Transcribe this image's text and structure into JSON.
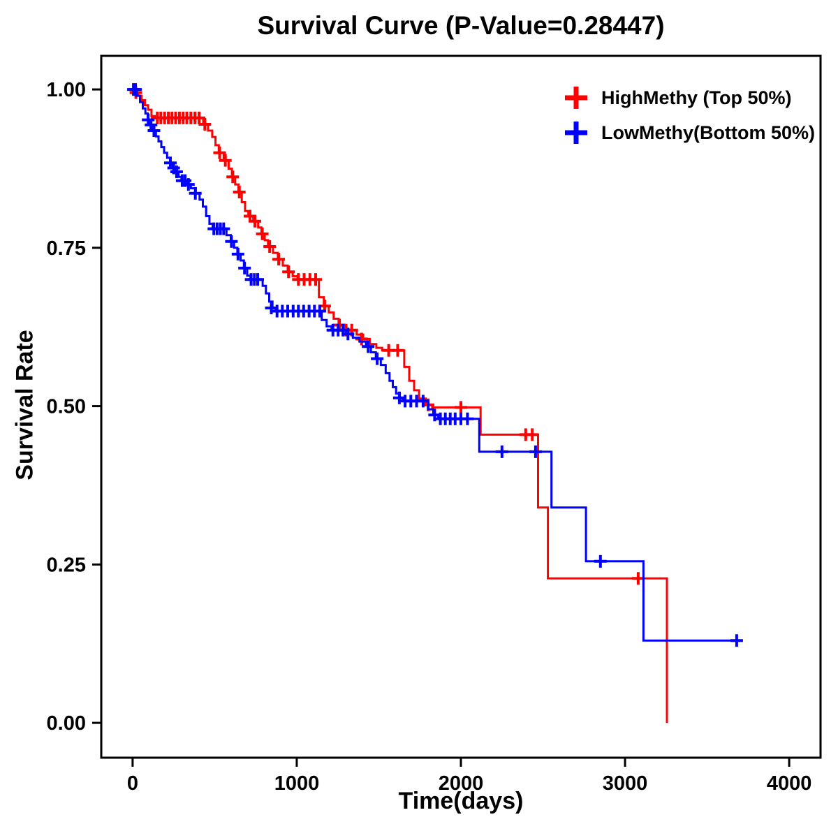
{
  "chart_data": {
    "type": "line",
    "subtype": "kaplan-meier-step",
    "title": "Survival Curve (P-Value=0.28447)",
    "xlabel": "Time(days)",
    "ylabel": "Survival Rate",
    "xlim": [
      -191,
      4191
    ],
    "ylim": [
      -0.055,
      1.053
    ],
    "xticks": [
      0,
      1000,
      2000,
      3000,
      4000
    ],
    "yticks": [
      0,
      0.25,
      0.5,
      0.75,
      1
    ],
    "grid": false,
    "legend_position": "top-right",
    "axis_color": "#000000",
    "series": [
      {
        "name": "HighMethy (Top 50%)",
        "color": "#ff0000",
        "steps": [
          [
            0,
            1.0
          ],
          [
            15,
            0.995
          ],
          [
            35,
            0.99
          ],
          [
            55,
            0.983
          ],
          [
            75,
            0.975
          ],
          [
            95,
            0.968
          ],
          [
            115,
            0.958
          ],
          [
            135,
            0.955
          ],
          [
            430,
            0.945
          ],
          [
            460,
            0.935
          ],
          [
            485,
            0.925
          ],
          [
            505,
            0.912
          ],
          [
            525,
            0.9
          ],
          [
            555,
            0.888
          ],
          [
            585,
            0.875
          ],
          [
            605,
            0.862
          ],
          [
            625,
            0.85
          ],
          [
            645,
            0.838
          ],
          [
            665,
            0.822
          ],
          [
            685,
            0.808
          ],
          [
            705,
            0.8
          ],
          [
            735,
            0.792
          ],
          [
            765,
            0.782
          ],
          [
            785,
            0.772
          ],
          [
            805,
            0.762
          ],
          [
            825,
            0.752
          ],
          [
            855,
            0.742
          ],
          [
            885,
            0.732
          ],
          [
            915,
            0.722
          ],
          [
            945,
            0.712
          ],
          [
            975,
            0.705
          ],
          [
            1005,
            0.7
          ],
          [
            1135,
            0.672
          ],
          [
            1165,
            0.658
          ],
          [
            1195,
            0.648
          ],
          [
            1225,
            0.638
          ],
          [
            1255,
            0.628
          ],
          [
            1285,
            0.62
          ],
          [
            1365,
            0.613
          ],
          [
            1405,
            0.606
          ],
          [
            1445,
            0.598
          ],
          [
            1485,
            0.592
          ],
          [
            1520,
            0.588
          ],
          [
            1655,
            0.562
          ],
          [
            1685,
            0.54
          ],
          [
            1715,
            0.525
          ],
          [
            1745,
            0.512
          ],
          [
            1785,
            0.502
          ],
          [
            1825,
            0.498
          ],
          [
            2120,
            0.455
          ],
          [
            2470,
            0.34
          ],
          [
            2530,
            0.228
          ],
          [
            3255,
            0.0
          ]
        ],
        "censors": [
          [
            20,
            0.995
          ],
          [
            150,
            0.955
          ],
          [
            172,
            0.955
          ],
          [
            195,
            0.955
          ],
          [
            218,
            0.955
          ],
          [
            240,
            0.955
          ],
          [
            262,
            0.955
          ],
          [
            285,
            0.955
          ],
          [
            308,
            0.955
          ],
          [
            330,
            0.955
          ],
          [
            355,
            0.955
          ],
          [
            380,
            0.955
          ],
          [
            405,
            0.955
          ],
          [
            440,
            0.945
          ],
          [
            530,
            0.9
          ],
          [
            565,
            0.888
          ],
          [
            610,
            0.862
          ],
          [
            650,
            0.838
          ],
          [
            715,
            0.8
          ],
          [
            745,
            0.792
          ],
          [
            790,
            0.772
          ],
          [
            835,
            0.752
          ],
          [
            890,
            0.732
          ],
          [
            950,
            0.712
          ],
          [
            1010,
            0.7
          ],
          [
            1045,
            0.7
          ],
          [
            1080,
            0.7
          ],
          [
            1115,
            0.7
          ],
          [
            1170,
            0.658
          ],
          [
            1260,
            0.628
          ],
          [
            1300,
            0.62
          ],
          [
            1335,
            0.62
          ],
          [
            1395,
            0.606
          ],
          [
            1560,
            0.588
          ],
          [
            1615,
            0.588
          ],
          [
            1800,
            0.502
          ],
          [
            2000,
            0.498
          ],
          [
            2395,
            0.455
          ],
          [
            2435,
            0.455
          ],
          [
            3080,
            0.228
          ]
        ]
      },
      {
        "name": "LowMethy(Bottom 50%)",
        "color": "#0000ff",
        "steps": [
          [
            0,
            1.0
          ],
          [
            25,
            0.99
          ],
          [
            45,
            0.98
          ],
          [
            62,
            0.97
          ],
          [
            78,
            0.962
          ],
          [
            92,
            0.952
          ],
          [
            108,
            0.944
          ],
          [
            125,
            0.935
          ],
          [
            142,
            0.926
          ],
          [
            158,
            0.918
          ],
          [
            175,
            0.909
          ],
          [
            192,
            0.9
          ],
          [
            210,
            0.892
          ],
          [
            228,
            0.884
          ],
          [
            245,
            0.876
          ],
          [
            262,
            0.87
          ],
          [
            280,
            0.862
          ],
          [
            298,
            0.856
          ],
          [
            325,
            0.85
          ],
          [
            355,
            0.844
          ],
          [
            385,
            0.836
          ],
          [
            408,
            0.826
          ],
          [
            428,
            0.815
          ],
          [
            448,
            0.8
          ],
          [
            468,
            0.788
          ],
          [
            488,
            0.78
          ],
          [
            572,
            0.77
          ],
          [
            598,
            0.76
          ],
          [
            618,
            0.75
          ],
          [
            638,
            0.74
          ],
          [
            658,
            0.73
          ],
          [
            678,
            0.718
          ],
          [
            698,
            0.706
          ],
          [
            718,
            0.7
          ],
          [
            792,
            0.69
          ],
          [
            812,
            0.678
          ],
          [
            832,
            0.665
          ],
          [
            852,
            0.655
          ],
          [
            872,
            0.65
          ],
          [
            1152,
            0.636
          ],
          [
            1182,
            0.626
          ],
          [
            1212,
            0.62
          ],
          [
            1302,
            0.614
          ],
          [
            1342,
            0.608
          ],
          [
            1382,
            0.602
          ],
          [
            1422,
            0.594
          ],
          [
            1452,
            0.585
          ],
          [
            1482,
            0.575
          ],
          [
            1512,
            0.565
          ],
          [
            1542,
            0.552
          ],
          [
            1565,
            0.54
          ],
          [
            1585,
            0.53
          ],
          [
            1605,
            0.52
          ],
          [
            1628,
            0.513
          ],
          [
            1648,
            0.508
          ],
          [
            1802,
            0.495
          ],
          [
            1832,
            0.486
          ],
          [
            1862,
            0.48
          ],
          [
            2112,
            0.428
          ],
          [
            2552,
            0.34
          ],
          [
            2762,
            0.255
          ],
          [
            3112,
            0.13
          ],
          [
            3700,
            0.13
          ]
        ],
        "censors": [
          [
            5,
            1.0
          ],
          [
            18,
            1.0
          ],
          [
            95,
            0.952
          ],
          [
            112,
            0.944
          ],
          [
            130,
            0.935
          ],
          [
            230,
            0.884
          ],
          [
            250,
            0.876
          ],
          [
            268,
            0.87
          ],
          [
            302,
            0.856
          ],
          [
            320,
            0.856
          ],
          [
            340,
            0.85
          ],
          [
            382,
            0.836
          ],
          [
            495,
            0.78
          ],
          [
            515,
            0.78
          ],
          [
            535,
            0.78
          ],
          [
            555,
            0.78
          ],
          [
            602,
            0.76
          ],
          [
            642,
            0.74
          ],
          [
            682,
            0.718
          ],
          [
            722,
            0.7
          ],
          [
            742,
            0.7
          ],
          [
            762,
            0.7
          ],
          [
            845,
            0.655
          ],
          [
            880,
            0.65
          ],
          [
            912,
            0.65
          ],
          [
            945,
            0.65
          ],
          [
            978,
            0.65
          ],
          [
            1010,
            0.65
          ],
          [
            1042,
            0.65
          ],
          [
            1075,
            0.65
          ],
          [
            1108,
            0.65
          ],
          [
            1140,
            0.65
          ],
          [
            1220,
            0.62
          ],
          [
            1252,
            0.62
          ],
          [
            1282,
            0.62
          ],
          [
            1312,
            0.614
          ],
          [
            1435,
            0.594
          ],
          [
            1490,
            0.575
          ],
          [
            1625,
            0.513
          ],
          [
            1660,
            0.508
          ],
          [
            1695,
            0.508
          ],
          [
            1730,
            0.508
          ],
          [
            1770,
            0.508
          ],
          [
            1840,
            0.486
          ],
          [
            1875,
            0.48
          ],
          [
            1905,
            0.48
          ],
          [
            1935,
            0.48
          ],
          [
            1965,
            0.48
          ],
          [
            2000,
            0.48
          ],
          [
            2040,
            0.48
          ],
          [
            2250,
            0.428
          ],
          [
            2455,
            0.428
          ],
          [
            2850,
            0.255
          ],
          [
            3680,
            0.13
          ]
        ]
      }
    ]
  }
}
